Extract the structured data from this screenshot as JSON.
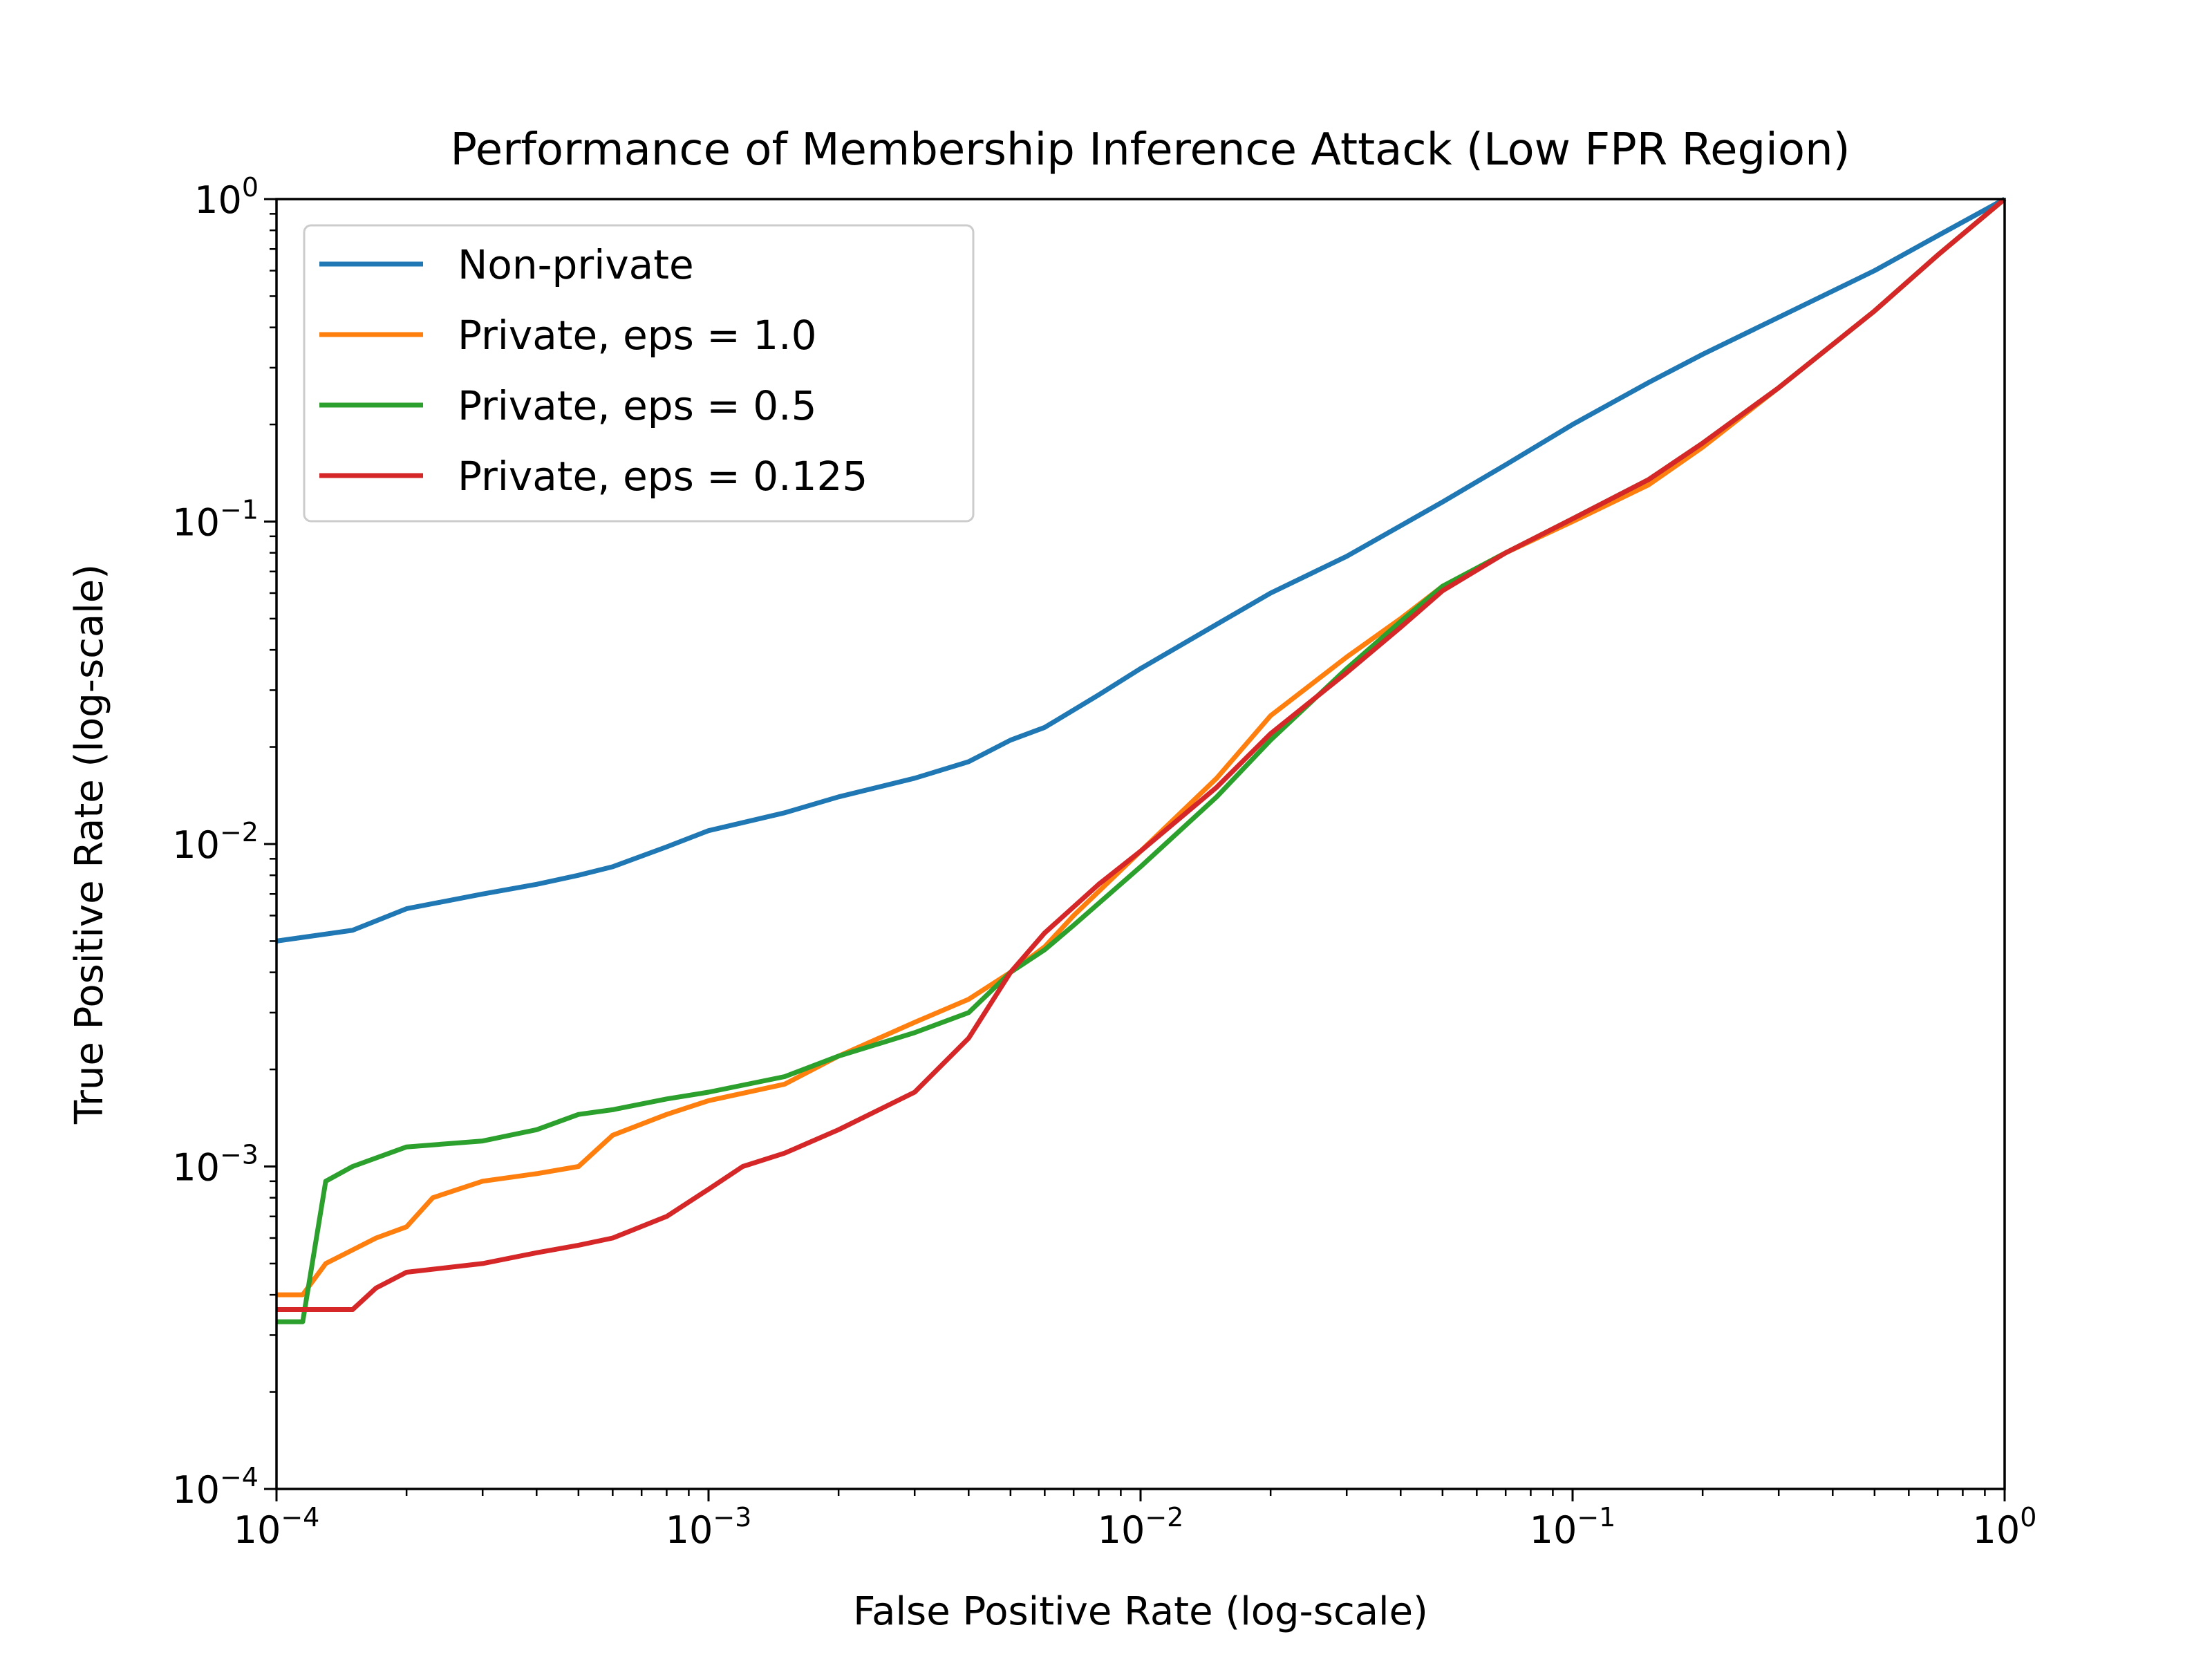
{
  "chart_data": {
    "type": "line",
    "title": "Performance of Membership Inference Attack (Low FPR Region)",
    "xlabel": "False Positive Rate (log-scale)",
    "ylabel": "True Positive Rate (log-scale)",
    "xscale": "log",
    "yscale": "log",
    "xlim": [
      0.0001,
      1
    ],
    "ylim": [
      0.0001,
      1
    ],
    "x_ticks": [
      {
        "value": 0.0001,
        "base": "10",
        "exp": "−4"
      },
      {
        "value": 0.001,
        "base": "10",
        "exp": "−3"
      },
      {
        "value": 0.01,
        "base": "10",
        "exp": "−2"
      },
      {
        "value": 0.1,
        "base": "10",
        "exp": "−1"
      },
      {
        "value": 1,
        "base": "10",
        "exp": "0"
      }
    ],
    "y_ticks": [
      {
        "value": 0.0001,
        "base": "10",
        "exp": "−4"
      },
      {
        "value": 0.001,
        "base": "10",
        "exp": "−3"
      },
      {
        "value": 0.01,
        "base": "10",
        "exp": "−2"
      },
      {
        "value": 0.1,
        "base": "10",
        "exp": "−1"
      },
      {
        "value": 1,
        "base": "10",
        "exp": "0"
      }
    ],
    "grid": false,
    "legend_position": "top-left",
    "series": [
      {
        "name": "Non-private",
        "color": "#1f77b4",
        "x": [
          0.0001,
          0.00015,
          0.0002,
          0.0003,
          0.0004,
          0.0005,
          0.0006,
          0.0008,
          0.001,
          0.0015,
          0.002,
          0.003,
          0.004,
          0.005,
          0.006,
          0.008,
          0.01,
          0.015,
          0.02,
          0.03,
          0.05,
          0.07,
          0.1,
          0.15,
          0.2,
          0.3,
          0.5,
          0.7,
          1.0
        ],
        "y": [
          0.005,
          0.0054,
          0.0063,
          0.007,
          0.0075,
          0.008,
          0.0085,
          0.0098,
          0.011,
          0.0125,
          0.014,
          0.016,
          0.018,
          0.021,
          0.023,
          0.029,
          0.035,
          0.048,
          0.06,
          0.078,
          0.115,
          0.15,
          0.2,
          0.27,
          0.33,
          0.43,
          0.6,
          0.77,
          1.0
        ]
      },
      {
        "name": "Private, eps = 1.0",
        "color": "#ff7f0e",
        "x": [
          0.0001,
          0.000115,
          0.00013,
          0.00017,
          0.0002,
          0.00023,
          0.0003,
          0.0004,
          0.0005,
          0.0006,
          0.0008,
          0.001,
          0.0015,
          0.002,
          0.003,
          0.004,
          0.005,
          0.006,
          0.007,
          0.01,
          0.015,
          0.02,
          0.03,
          0.04,
          0.05,
          0.07,
          0.1,
          0.15,
          0.2,
          0.3,
          0.5,
          0.7,
          1.0
        ],
        "y": [
          0.0004,
          0.0004,
          0.0005,
          0.0006,
          0.00065,
          0.0008,
          0.0009,
          0.00095,
          0.001,
          0.00125,
          0.00145,
          0.0016,
          0.0018,
          0.0022,
          0.0028,
          0.0033,
          0.004,
          0.0048,
          0.006,
          0.0095,
          0.016,
          0.025,
          0.038,
          0.05,
          0.063,
          0.08,
          0.1,
          0.13,
          0.17,
          0.26,
          0.45,
          0.67,
          1.0
        ]
      },
      {
        "name": "Private, eps = 0.5",
        "color": "#2ca02c",
        "x": [
          0.0001,
          0.000115,
          0.00013,
          0.00015,
          0.0002,
          0.0003,
          0.0004,
          0.0005,
          0.0006,
          0.0008,
          0.001,
          0.0015,
          0.002,
          0.003,
          0.004,
          0.005,
          0.006,
          0.007,
          0.01,
          0.015,
          0.02,
          0.03,
          0.04,
          0.05,
          0.07,
          0.1,
          0.15,
          0.2,
          0.3,
          0.5,
          0.7,
          1.0
        ],
        "y": [
          0.00033,
          0.00033,
          0.0009,
          0.001,
          0.00115,
          0.0012,
          0.0013,
          0.00145,
          0.0015,
          0.00162,
          0.0017,
          0.0019,
          0.0022,
          0.0026,
          0.003,
          0.004,
          0.0047,
          0.0056,
          0.0085,
          0.014,
          0.021,
          0.035,
          0.049,
          0.063,
          0.08,
          0.102,
          0.135,
          0.175,
          0.26,
          0.45,
          0.67,
          1.0
        ]
      },
      {
        "name": "Private, eps = 0.125",
        "color": "#d62728",
        "x": [
          0.0001,
          0.00015,
          0.00017,
          0.0002,
          0.0003,
          0.0004,
          0.0005,
          0.0006,
          0.0008,
          0.001,
          0.0012,
          0.0015,
          0.002,
          0.003,
          0.004,
          0.005,
          0.006,
          0.008,
          0.01,
          0.015,
          0.02,
          0.03,
          0.04,
          0.05,
          0.07,
          0.1,
          0.15,
          0.2,
          0.3,
          0.5,
          0.7,
          1.0
        ],
        "y": [
          0.00036,
          0.00036,
          0.00042,
          0.00047,
          0.0005,
          0.00054,
          0.00057,
          0.0006,
          0.0007,
          0.00085,
          0.001,
          0.0011,
          0.0013,
          0.0017,
          0.0025,
          0.004,
          0.0053,
          0.0075,
          0.0095,
          0.015,
          0.022,
          0.034,
          0.047,
          0.061,
          0.08,
          0.102,
          0.135,
          0.175,
          0.26,
          0.45,
          0.67,
          1.0
        ]
      }
    ]
  }
}
